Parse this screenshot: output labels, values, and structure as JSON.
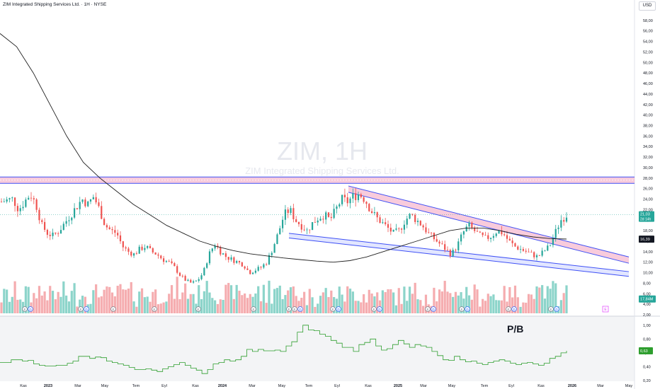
{
  "header": {
    "symbol_title": "ZIM Integrated Shipping Services Ltd. · 1H · NYSE",
    "currency": "USD"
  },
  "watermark": {
    "ticker": "ZIM, 1H",
    "name": "ZIM Integrated Shipping Services Ltd."
  },
  "colors": {
    "up": "#26a69a",
    "down": "#ef5350",
    "volume_up": "#7fcfc4",
    "volume_down": "#f4a3a6",
    "channel_line": "#3f51f5",
    "zone_fill": "#f3a0c0",
    "moving_average": "#1f1f1f",
    "pb_line": "#2e9e2e",
    "last_price_label": "#26a69a",
    "ma_label": "#131722"
  },
  "chart_data": [
    {
      "type": "candlestick",
      "title": "ZIM, 1H",
      "ylim": [
        2,
        60
      ],
      "y_ticks": [
        "2,00",
        "4,00",
        "6,00",
        "8,00",
        "10,00",
        "12,00",
        "14,00",
        "16,00",
        "18,00",
        "20,00",
        "22,00",
        "24,00",
        "26,00",
        "28,00",
        "30,00",
        "32,00",
        "34,00",
        "36,00",
        "38,00",
        "40,00",
        "42,00",
        "44,00",
        "46,00",
        "48,00",
        "50,00",
        "52,00",
        "54,00",
        "56,00",
        "58,00"
      ],
      "x_ticks": [
        "Kas",
        "2023",
        "Mar",
        "May",
        "Tem",
        "Eyl",
        "Kas",
        "2024",
        "Mar",
        "May",
        "Tem",
        "Eyl",
        "Kas",
        "2025",
        "Mar",
        "May",
        "Tem",
        "Eyl",
        "Kas",
        "2026",
        "Mar",
        "May"
      ],
      "close_path": [
        23.5,
        23.8,
        24.0,
        22.0,
        23.5,
        25.0,
        23.0,
        19.0,
        17.5,
        17.0,
        18.0,
        19.5,
        21.0,
        22.5,
        24.0,
        23.0,
        24.5,
        22.0,
        19.0,
        18.0,
        17.5,
        15.0,
        14.0,
        13.5,
        14.5,
        15.0,
        14.0,
        13.5,
        12.5,
        12.0,
        11.0,
        9.5,
        8.5,
        8.0,
        8.5,
        10.0,
        13.5,
        15.5,
        14.0,
        13.0,
        12.5,
        12.0,
        11.5,
        10.0,
        10.5,
        11.0,
        12.0,
        14.5,
        17.5,
        21.0,
        22.0,
        20.0,
        19.0,
        18.0,
        19.5,
        20.5,
        21.0,
        20.0,
        22.0,
        24.0,
        23.5,
        24.5,
        25.0,
        24.0,
        22.0,
        20.5,
        19.5,
        18.5,
        17.5,
        18.0,
        20.0,
        21.0,
        20.0,
        19.0,
        17.5,
        16.5,
        15.5,
        14.5,
        13.5,
        15.0,
        17.5,
        19.0,
        18.0,
        17.0,
        16.5,
        17.0,
        18.0,
        17.5,
        16.0,
        15.0,
        14.5,
        14.0,
        13.5,
        13.0,
        14.0,
        15.0,
        17.5,
        20.0,
        21.0
      ],
      "price_labels": [
        "21,03",
        "16,39"
      ],
      "countdown_label": "2d 14h",
      "volume_label": "17,84M",
      "moving_average_path": [
        55.5,
        53.0,
        48.0,
        42.0,
        36.0,
        31.0,
        28.0,
        25.5,
        23.0,
        21.0,
        19.0,
        17.5,
        16.0,
        15.0,
        14.2,
        13.6,
        13.2,
        12.8,
        12.5,
        12.2,
        12.0,
        12.3,
        13.0,
        14.0,
        15.0,
        16.0,
        17.0,
        18.0,
        18.5,
        18.5,
        18.0,
        17.3,
        16.8,
        16.5,
        16.4
      ],
      "horizontal_zone": [
        27.0,
        28.2
      ],
      "upper_channel": {
        "from": [
          26.5,
          13.3
        ],
        "parallel_offset": 1.2
      },
      "descending_channel_upper": [
        26.5,
        13.0
      ],
      "descending_channel_lower": [
        17.5,
        10.2
      ]
    },
    {
      "type": "line",
      "title": "P/B",
      "ylim": [
        0.2,
        1.1
      ],
      "y_ticks": [
        "1,00",
        "0,80",
        "0,60",
        "0,40",
        "0,20"
      ],
      "current_value_label": "0,63",
      "values": [
        0.46,
        0.46,
        0.5,
        0.5,
        0.48,
        0.49,
        0.44,
        0.42,
        0.41,
        0.41,
        0.42,
        0.42,
        0.45,
        0.48,
        0.55,
        0.55,
        0.52,
        0.54,
        0.53,
        0.48,
        0.46,
        0.44,
        0.42,
        0.39,
        0.36,
        0.36,
        0.37,
        0.35,
        0.33,
        0.37,
        0.4,
        0.43,
        0.46,
        0.42,
        0.38,
        0.35,
        0.3,
        0.36,
        0.44,
        0.46,
        0.5,
        0.48,
        0.5,
        0.55,
        0.65,
        0.62,
        0.65,
        0.63,
        0.63,
        0.64,
        0.62,
        0.7,
        0.76,
        0.9,
        1.0,
        0.93,
        0.92,
        0.87,
        0.84,
        0.78,
        0.74,
        0.68,
        0.68,
        0.62,
        0.72,
        0.75,
        0.8,
        0.7,
        0.64,
        0.66,
        0.72,
        0.78,
        0.73,
        0.68,
        0.72,
        0.7,
        0.68,
        0.62,
        0.56,
        0.5,
        0.49,
        0.55,
        0.5,
        0.47,
        0.48,
        0.45,
        0.43,
        0.46,
        0.48,
        0.5,
        0.48,
        0.45,
        0.43,
        0.45,
        0.46,
        0.44,
        0.42,
        0.45,
        0.52,
        0.55,
        0.6,
        0.63
      ]
    }
  ],
  "events": {
    "markers": [
      "E",
      "D",
      "E",
      "D",
      "E",
      "E",
      "E",
      "E",
      "E",
      "E",
      "D",
      "E",
      "D",
      "E",
      "D",
      "E",
      "D",
      "E",
      "D",
      "E",
      "D",
      "E",
      "D"
    ],
    "badge": "E"
  }
}
